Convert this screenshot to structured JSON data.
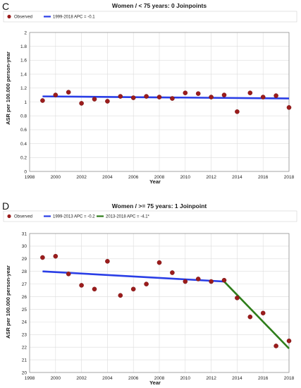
{
  "chart_data": [
    {
      "panel": "C",
      "type": "line",
      "title": "Women / < 75 years: 0 Joinpoints",
      "xlabel": "Year",
      "ylabel": "ASR per 100.000 person-year",
      "xlim": [
        1998,
        2018
      ],
      "ylim": [
        0,
        2
      ],
      "xticks": [
        1998,
        2000,
        2002,
        2004,
        2006,
        2008,
        2010,
        2012,
        2014,
        2016,
        2018
      ],
      "yticks": [
        0,
        0.2,
        0.4,
        0.6,
        0.8,
        1,
        1.2,
        1.4,
        1.6,
        1.8,
        2
      ],
      "grid": true,
      "legend_position": "top-left",
      "observed": {
        "name": "Observed",
        "color": "#9b1c1c",
        "x": [
          1999,
          2000,
          2001,
          2002,
          2003,
          2004,
          2005,
          2006,
          2007,
          2008,
          2009,
          2010,
          2011,
          2012,
          2013,
          2014,
          2015,
          2016,
          2017,
          2018
        ],
        "y": [
          1.02,
          1.1,
          1.14,
          0.98,
          1.04,
          1.01,
          1.08,
          1.06,
          1.08,
          1.07,
          1.05,
          1.13,
          1.12,
          1.07,
          1.1,
          0.86,
          1.13,
          1.07,
          1.09,
          0.92
        ]
      },
      "series": [
        {
          "name": "1999-2018 APC = -0.1",
          "color": "#2a3ee6",
          "x": [
            1999,
            2018
          ],
          "y": [
            1.08,
            1.05
          ]
        }
      ]
    },
    {
      "panel": "D",
      "type": "line",
      "title": "Women / >= 75 years: 1 Joinpoint",
      "xlabel": "Year",
      "ylabel": "ASR per 100.000 person-year",
      "xlim": [
        1998,
        2018
      ],
      "ylim": [
        20,
        31
      ],
      "xticks": [
        1998,
        2000,
        2002,
        2004,
        2006,
        2008,
        2010,
        2012,
        2014,
        2016,
        2018
      ],
      "yticks": [
        20,
        21,
        22,
        23,
        24,
        25,
        26,
        27,
        28,
        29,
        30,
        31
      ],
      "grid": true,
      "legend_position": "top-left",
      "observed": {
        "name": "Observed",
        "color": "#9b1c1c",
        "x": [
          1999,
          2000,
          2001,
          2002,
          2003,
          2004,
          2005,
          2006,
          2007,
          2008,
          2009,
          2010,
          2011,
          2012,
          2013,
          2014,
          2015,
          2016,
          2017,
          2018
        ],
        "y": [
          29.1,
          29.2,
          27.8,
          26.9,
          26.6,
          28.8,
          26.1,
          26.6,
          27.0,
          28.7,
          27.9,
          27.2,
          27.4,
          27.2,
          27.3,
          25.9,
          24.4,
          24.7,
          22.1,
          22.5
        ]
      },
      "series": [
        {
          "name": "1999-2013 APC = -0.2",
          "color": "#2a3ee6",
          "x": [
            1999,
            2013
          ],
          "y": [
            28.0,
            27.2
          ]
        },
        {
          "name": "2013-2018 APC = -4.1*",
          "color": "#2e7d1a",
          "x": [
            2013,
            2018
          ],
          "y": [
            27.2,
            21.9
          ]
        }
      ]
    }
  ]
}
